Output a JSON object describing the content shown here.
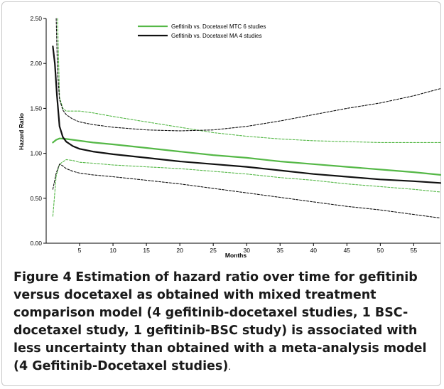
{
  "chart_data": {
    "type": "line",
    "title": "",
    "xlabel": "Months",
    "ylabel": "Hazard Ratio",
    "xlim": [
      0,
      59
    ],
    "ylim": [
      0,
      2.5
    ],
    "x_ticks": [
      5,
      10,
      15,
      20,
      25,
      30,
      35,
      40,
      45,
      50,
      55
    ],
    "x_tick_labels": [
      "5",
      "10",
      "15",
      "20",
      "25",
      "30",
      "35",
      "40",
      "45",
      "50",
      "55"
    ],
    "y_ticks": [
      0,
      0.5,
      1,
      1.5,
      2,
      2.5
    ],
    "y_tick_labels": [
      "0.00",
      "0.50",
      "1.00",
      "1.50",
      "2.00",
      "2.50"
    ],
    "grid": false,
    "legend_position": "top-center",
    "series": [
      {
        "name": "Gefitinib vs. Docetaxel MTC 6 studies",
        "color": "#55b847",
        "style": "solid",
        "x": [
          1,
          1.5,
          2,
          3,
          4,
          5,
          7,
          10,
          15,
          20,
          25,
          30,
          35,
          40,
          45,
          50,
          55,
          59
        ],
        "y": [
          1.12,
          1.15,
          1.165,
          1.16,
          1.15,
          1.14,
          1.12,
          1.1,
          1.06,
          1.02,
          0.98,
          0.95,
          0.91,
          0.88,
          0.85,
          0.82,
          0.79,
          0.76
        ]
      },
      {
        "name": "",
        "color": "#55b847",
        "style": "dashed",
        "x": [
          1.7,
          2,
          2.5,
          3,
          4,
          5,
          7,
          10,
          15,
          20,
          25,
          30,
          35,
          40,
          45,
          50,
          55,
          59
        ],
        "y": [
          2.5,
          1.62,
          1.5,
          1.47,
          1.47,
          1.47,
          1.45,
          1.41,
          1.35,
          1.29,
          1.23,
          1.19,
          1.16,
          1.14,
          1.13,
          1.12,
          1.12,
          1.12
        ]
      },
      {
        "name": "",
        "color": "#55b847",
        "style": "dashed",
        "x": [
          1,
          1.5,
          2,
          3,
          4,
          5,
          7,
          10,
          15,
          20,
          25,
          30,
          35,
          40,
          45,
          50,
          55,
          59
        ],
        "y": [
          0.3,
          0.75,
          0.88,
          0.93,
          0.92,
          0.9,
          0.89,
          0.87,
          0.85,
          0.83,
          0.8,
          0.77,
          0.73,
          0.7,
          0.66,
          0.63,
          0.6,
          0.57
        ]
      },
      {
        "name": "Gefitinib vs. Docetaxel MA 4 studies",
        "color": "#111111",
        "style": "solid",
        "x": [
          1,
          1.3,
          1.6,
          2,
          2.5,
          3,
          4,
          5,
          7,
          10,
          15,
          20,
          25,
          30,
          35,
          40,
          45,
          50,
          55,
          59
        ],
        "y": [
          2.19,
          2.0,
          1.65,
          1.3,
          1.18,
          1.13,
          1.08,
          1.05,
          1.02,
          0.99,
          0.95,
          0.91,
          0.88,
          0.85,
          0.81,
          0.77,
          0.74,
          0.71,
          0.69,
          0.67
        ]
      },
      {
        "name": "",
        "color": "#111111",
        "style": "dashed",
        "x": [
          1.5,
          1.7,
          2,
          2.5,
          3,
          4,
          5,
          7,
          10,
          15,
          20,
          25,
          30,
          35,
          40,
          45,
          50,
          55,
          59
        ],
        "y": [
          2.5,
          1.9,
          1.6,
          1.48,
          1.43,
          1.38,
          1.35,
          1.32,
          1.29,
          1.26,
          1.25,
          1.26,
          1.3,
          1.36,
          1.43,
          1.5,
          1.56,
          1.64,
          1.72
        ]
      },
      {
        "name": "",
        "color": "#111111",
        "style": "dashed",
        "x": [
          1,
          1.5,
          2,
          2.5,
          3,
          4,
          5,
          7,
          10,
          15,
          20,
          25,
          30,
          35,
          40,
          45,
          50,
          55,
          59
        ],
        "y": [
          0.6,
          0.78,
          0.88,
          0.86,
          0.83,
          0.8,
          0.78,
          0.76,
          0.74,
          0.7,
          0.66,
          0.61,
          0.56,
          0.51,
          0.46,
          0.41,
          0.37,
          0.32,
          0.28
        ]
      }
    ]
  },
  "caption": {
    "label": "Figure 4",
    "text": "Estimation of hazard ratio over time for gefitinib versus docetaxel as obtained with mixed treatment comparison model (4 gefitinib-docetaxel studies, 1 BSC-docetaxel study, 1 gefitinib-BSC study) is associated with less uncertainty than obtained with a meta-analysis model (4 Gefitinib-Docetaxel studies)",
    "period": "."
  }
}
